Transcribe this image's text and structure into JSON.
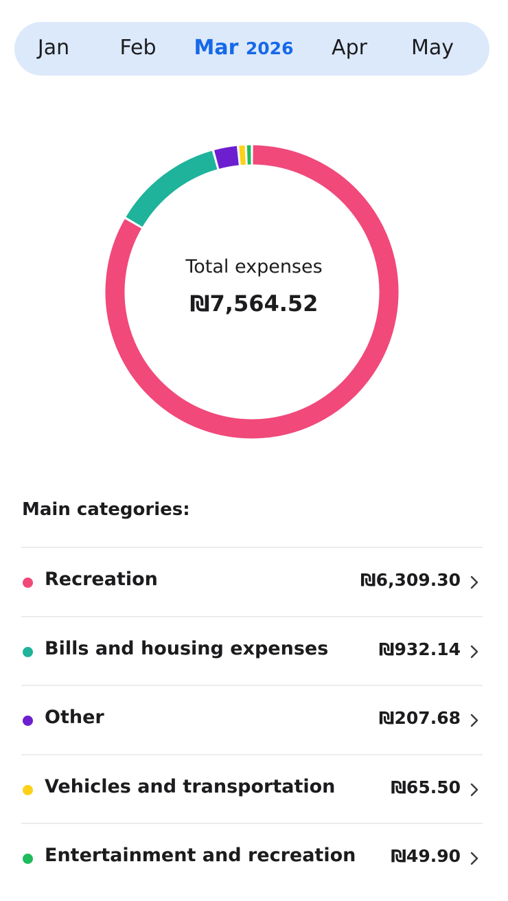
{
  "months": [
    {
      "label": "Jan",
      "active": false
    },
    {
      "label": "Feb",
      "active": false
    },
    {
      "label": "Mar",
      "year": "2026",
      "active": true
    },
    {
      "label": "Apr",
      "active": false
    },
    {
      "label": "May",
      "active": false
    }
  ],
  "summary": {
    "label": "Total expenses",
    "amount": "₪7,564.52"
  },
  "section_title": "Main categories:",
  "categories": [
    {
      "name": "Recreation",
      "amount": "₪6,309.30",
      "color": "#f0497a"
    },
    {
      "name": "Bills and housing expenses",
      "amount": "₪932.14",
      "color": "#1fb39b"
    },
    {
      "name": "Other",
      "amount": "₪207.68",
      "color": "#6d1fd0"
    },
    {
      "name": "Vehicles and transportation",
      "amount": "₪65.50",
      "color": "#fcd117"
    },
    {
      "name": "Entertainment and recreation",
      "amount": "₪49.90",
      "color": "#1fbb5c"
    }
  ],
  "chart_data": {
    "type": "pie",
    "categories": [
      "Recreation",
      "Bills and housing expenses",
      "Other",
      "Vehicles and transportation",
      "Entertainment and recreation"
    ],
    "values": [
      6309.3,
      932.14,
      207.68,
      65.5,
      49.9
    ],
    "colors": [
      "#f0497a",
      "#1fb39b",
      "#6d1fd0",
      "#fcd117",
      "#1fbb5c"
    ]
  }
}
